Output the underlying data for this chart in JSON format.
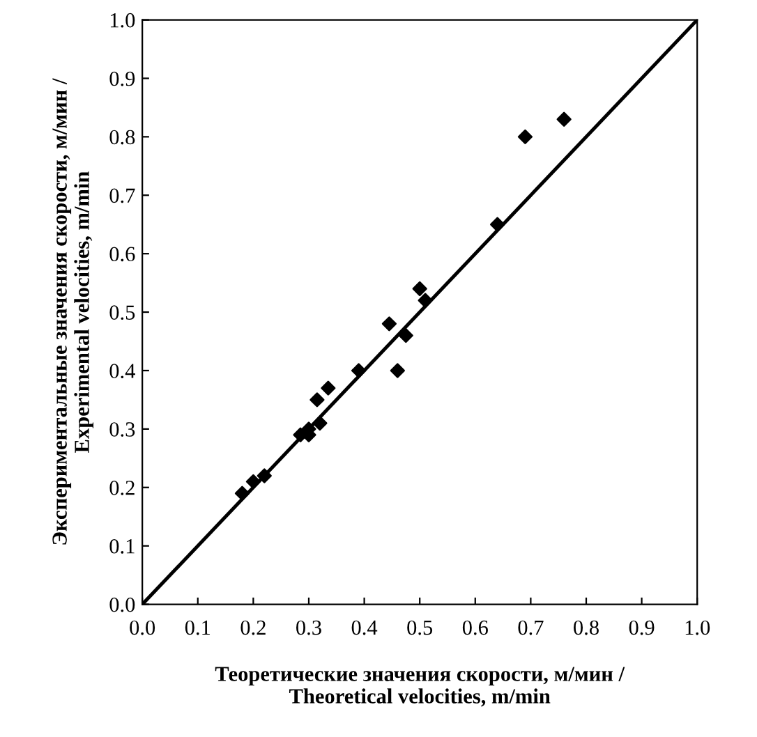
{
  "chart_data": {
    "type": "scatter",
    "xlabel": "Теоретические значения скорости, м/мин /\nTheoretical velocities, m/min",
    "ylabel": "Экспериментальные значения скорости, м/мин /\nExperimental velocities, m/min",
    "series": [
      {
        "color": "#000000",
        "marker": "diamond",
        "x": [
          0.18,
          0.2,
          0.22,
          0.285,
          0.3,
          0.3,
          0.32,
          0.315,
          0.335,
          0.39,
          0.445,
          0.46,
          0.475,
          0.5,
          0.51,
          0.64,
          0.69,
          0.76
        ],
        "values": [
          0.19,
          0.21,
          0.22,
          0.29,
          0.3,
          0.29,
          0.31,
          0.35,
          0.37,
          0.4,
          0.48,
          0.4,
          0.46,
          0.54,
          0.52,
          0.65,
          0.8,
          0.83
        ]
      },
      {
        "type": "line",
        "color": "#000000",
        "marker": "none",
        "x": [
          0,
          1
        ],
        "values": [
          0,
          1
        ]
      }
    ],
    "xlim": [
      0,
      1
    ],
    "ylim": [
      0,
      1
    ],
    "xticks": [
      {
        "value": 0,
        "label": "0.0"
      },
      0.1,
      0.2,
      0.3,
      0.4,
      0.5,
      0.6,
      0.7,
      0.8,
      0.9,
      {
        "value": 1,
        "label": "1.0"
      }
    ],
    "yticks": [
      {
        "value": 0,
        "label": "0.0"
      },
      0.1,
      0.2,
      0.3,
      0.4,
      0.5,
      0.6,
      0.7,
      0.8,
      0.9,
      {
        "value": 1,
        "label": "1.0"
      }
    ],
    "grid": false,
    "legend": false
  }
}
